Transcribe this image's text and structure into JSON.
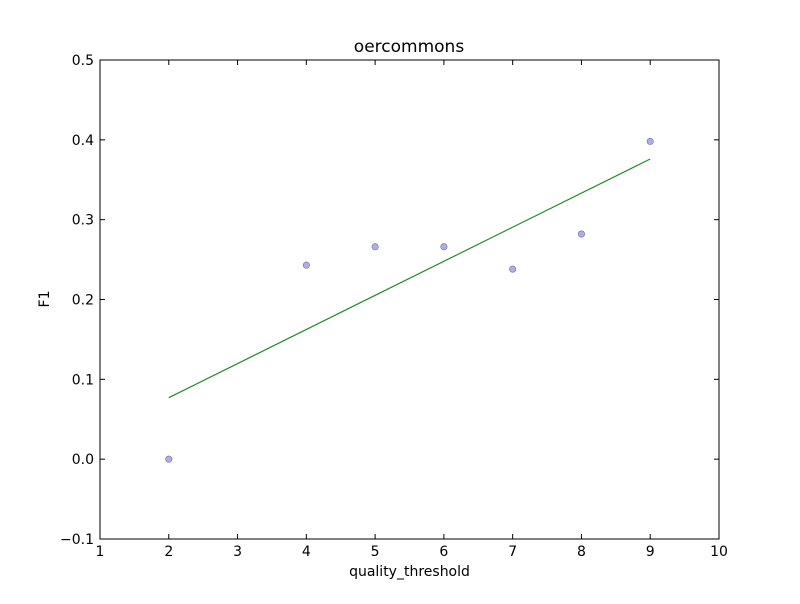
{
  "chart_data": {
    "type": "scatter",
    "title": "oercommons",
    "xlabel": "quality_threshold",
    "ylabel": "F1",
    "xlim": [
      1,
      10
    ],
    "ylim": [
      -0.1,
      0.5
    ],
    "x_ticks": [
      1,
      2,
      3,
      4,
      5,
      6,
      7,
      8,
      9,
      10
    ],
    "y_ticks": [
      -0.1,
      0.0,
      0.1,
      0.2,
      0.3,
      0.4,
      0.5
    ],
    "x_tick_labels": [
      "1",
      "2",
      "3",
      "4",
      "5",
      "6",
      "7",
      "8",
      "9",
      "10"
    ],
    "y_tick_labels": [
      "−0.1",
      "0.0",
      "0.1",
      "0.2",
      "0.3",
      "0.4",
      "0.5"
    ],
    "grid": false,
    "series": [
      {
        "type": "scatter",
        "color": "#8c8cd6",
        "points": [
          {
            "x": 2,
            "y": 0.0
          },
          {
            "x": 4,
            "y": 0.243
          },
          {
            "x": 5,
            "y": 0.266
          },
          {
            "x": 6,
            "y": 0.266
          },
          {
            "x": 7,
            "y": 0.238
          },
          {
            "x": 8,
            "y": 0.282
          },
          {
            "x": 9,
            "y": 0.398
          }
        ]
      },
      {
        "type": "line",
        "color": "#228b22",
        "points": [
          {
            "x": 2,
            "y": 0.077
          },
          {
            "x": 9,
            "y": 0.376
          }
        ]
      }
    ]
  }
}
